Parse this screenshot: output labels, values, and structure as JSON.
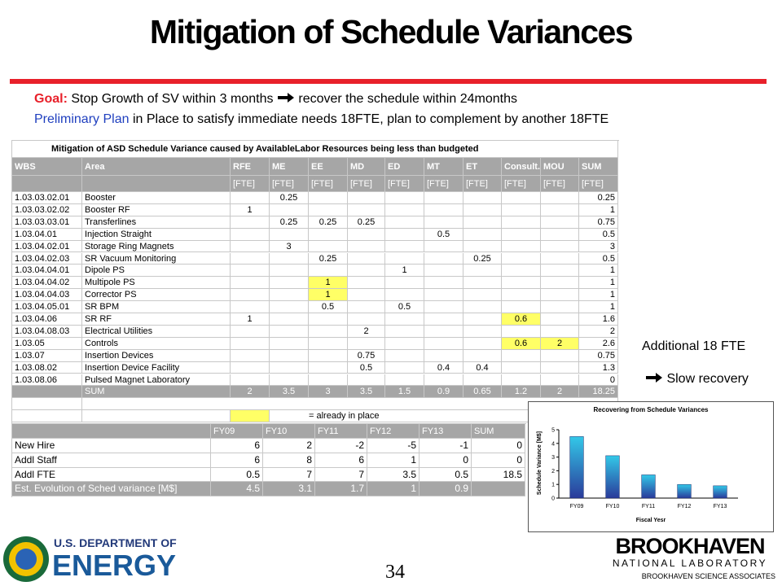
{
  "title": "Mitigation of Schedule Variances",
  "goal": {
    "label": "Goal:",
    "text1": "Stop Growth of SV within 3 months",
    "text2": "recover the schedule within 24months"
  },
  "plan": {
    "label": "Preliminary Plan",
    "text": "in Place to satisfy immediate needs 18FTE, plan to complement by another 18FTE"
  },
  "table1": {
    "title": "Mitigation of ASD Schedule Variance caused by AvailableLabor Resources being less than budgeted",
    "header": [
      "WBS",
      "Area",
      "RFE",
      "ME",
      "EE",
      "MD",
      "ED",
      "MT",
      "ET",
      "Consult.",
      "MOU",
      "SUM"
    ],
    "units": [
      null,
      null,
      "[FTE]",
      "[FTE]",
      "[FTE]",
      "[FTE]",
      "[FTE]",
      "[FTE]",
      "[FTE]",
      "[FTE]",
      "[FTE]",
      "[FTE]"
    ],
    "rows": [
      [
        "1.03.03.02.01",
        "Booster",
        null,
        "0.25",
        null,
        null,
        null,
        null,
        null,
        null,
        null,
        "0.25"
      ],
      [
        "1.03.03.02.02",
        "Booster RF",
        "1",
        null,
        null,
        null,
        null,
        null,
        null,
        null,
        null,
        "1"
      ],
      [
        "1.03.03.03.01",
        "Transferlines",
        null,
        "0.25",
        "0.25",
        "0.25",
        null,
        null,
        null,
        null,
        null,
        "0.75"
      ],
      [
        "1.03.04.01",
        "Injection Straight",
        null,
        null,
        null,
        null,
        null,
        "0.5",
        null,
        null,
        null,
        "0.5"
      ],
      [
        "1.03.04.02.01",
        "Storage Ring Magnets",
        null,
        "3",
        null,
        null,
        null,
        null,
        null,
        null,
        null,
        "3"
      ],
      [
        "1.03.04.02.03",
        "SR Vacuum Monitoring",
        null,
        null,
        "0.25",
        null,
        null,
        null,
        "0.25",
        null,
        null,
        "0.5"
      ],
      [
        "1.03.04.04.01",
        "Dipole PS",
        null,
        null,
        null,
        null,
        "1",
        null,
        null,
        null,
        null,
        "1"
      ],
      [
        "1.03.04.04.02",
        "Multipole PS",
        null,
        null,
        "1",
        null,
        null,
        null,
        null,
        null,
        null,
        "1"
      ],
      [
        "1.03.04.04.03",
        "Corrector PS",
        null,
        null,
        "1",
        null,
        null,
        null,
        null,
        null,
        null,
        "1"
      ],
      [
        "1.03.04.05.01",
        "SR BPM",
        null,
        null,
        "0.5",
        null,
        "0.5",
        null,
        null,
        null,
        null,
        "1"
      ],
      [
        "1.03.04.06",
        "SR RF",
        "1",
        null,
        null,
        null,
        null,
        null,
        null,
        "0.6",
        null,
        "1.6"
      ],
      [
        "1.03.04.08.03",
        "Electrical Utilities",
        null,
        null,
        null,
        "2",
        null,
        null,
        null,
        null,
        null,
        "2"
      ],
      [
        "1.03.05",
        "Controls",
        null,
        null,
        null,
        null,
        null,
        null,
        null,
        "0.6",
        "2",
        "2.6"
      ],
      [
        "1.03.07",
        "Insertion Devices",
        null,
        null,
        null,
        "0.75",
        null,
        null,
        null,
        null,
        null,
        "0.75"
      ],
      [
        "1.03.08.02",
        "Insertion Device Facility",
        null,
        null,
        null,
        "0.5",
        null,
        "0.4",
        "0.4",
        null,
        null,
        "1.3"
      ],
      [
        "1.03.08.06",
        "Pulsed Magnet Laboratory",
        null,
        null,
        null,
        null,
        null,
        null,
        null,
        null,
        null,
        "0"
      ]
    ],
    "sum_row": [
      null,
      "SUM",
      "2",
      "3.5",
      "3",
      "3.5",
      "1.5",
      "0.9",
      "0.65",
      "1.2",
      "2",
      "18.25"
    ],
    "highlighted": [
      [
        7,
        4
      ],
      [
        8,
        4
      ],
      [
        10,
        9
      ],
      [
        12,
        9
      ],
      [
        12,
        10
      ]
    ],
    "highlight_color": "#ffff66",
    "legend": "= already in place"
  },
  "table2": {
    "header": [
      null,
      "FY09",
      "FY10",
      "FY11",
      "FY12",
      "FY13",
      "SUM"
    ],
    "rows": [
      [
        "New Hire",
        "6",
        "2",
        "-2",
        "-5",
        "-1",
        "0"
      ],
      [
        "Addl Staff",
        "6",
        "8",
        "6",
        "1",
        "0",
        "0"
      ],
      [
        "Addl FTE",
        "0.5",
        "7",
        "7",
        "3.5",
        "0.5",
        "18.5"
      ],
      [
        "Est. Evolution of  Sched variance [M$]",
        "4.5",
        "3.1",
        "1.7",
        "1",
        "0.9",
        null
      ]
    ]
  },
  "side": {
    "line1": "Additional 18 FTE",
    "line2": "Slow recovery"
  },
  "chart_data": {
    "type": "bar",
    "title": "Recovering from Schedule Variances",
    "y_label": "Schedule Variance [M$]",
    "x_label": "Fiscal Yesr",
    "categories": [
      "FY09",
      "FY10",
      "FY11",
      "FY12",
      "FY13"
    ],
    "values": [
      4.5,
      3.1,
      1.7,
      1,
      0.9
    ],
    "color": "#33c8e8",
    "ylim": [
      0,
      5
    ],
    "yticks": [
      0,
      1,
      2,
      3,
      4,
      5
    ]
  },
  "footer": {
    "page": "34",
    "doe_line1": "U.S. DEPARTMENT OF",
    "doe_line2": "ENERGY",
    "bnl_line1": "BROOKHAVEN",
    "bnl_line2": "NATIONAL LABORATORY",
    "bnl_line3": "BROOKHAVEN SCIENCE ASSOCIATES"
  }
}
